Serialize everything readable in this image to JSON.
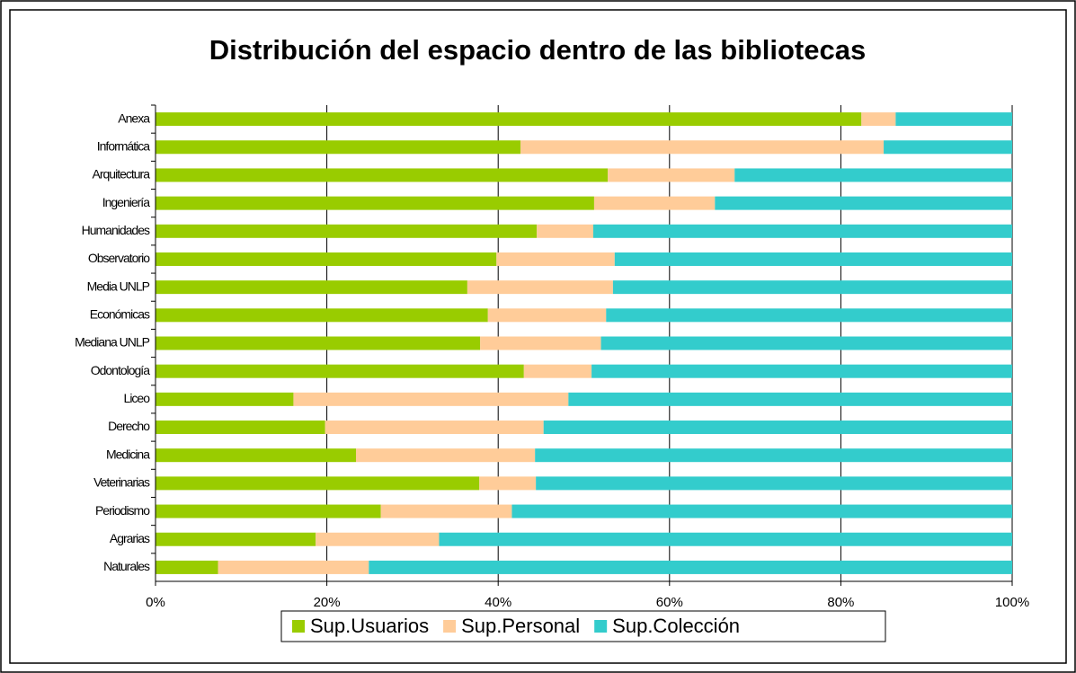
{
  "chart_data": {
    "type": "stacked-barh",
    "title": "Distribución del espacio dentro de las bibliotecas",
    "categories": [
      "Anexa",
      "Informática",
      "Arquitectura",
      "Ingeniería",
      "Humanidades",
      "Observatorio",
      "Media UNLP",
      "Económicas",
      "Mediana UNLP",
      "Odontología",
      "Liceo",
      "Derecho",
      "Medicina",
      "Veterinarias",
      "Periodismo",
      "Agrarias",
      "Naturales"
    ],
    "series": [
      {
        "name": "Sup.Usuarios",
        "color": "#99cc00",
        "values": [
          82.4,
          42.6,
          52.8,
          51.2,
          44.5,
          39.8,
          36.4,
          38.8,
          37.9,
          43.0,
          16.1,
          19.8,
          23.4,
          37.8,
          26.3,
          18.7,
          7.3
        ]
      },
      {
        "name": "Sup.Personal",
        "color": "#ffcc99",
        "values": [
          4.0,
          42.4,
          14.8,
          14.1,
          6.6,
          13.8,
          17.0,
          13.8,
          14.1,
          7.9,
          32.1,
          25.5,
          20.9,
          6.6,
          15.3,
          14.4,
          17.6
        ]
      },
      {
        "name": "Sup.Colección",
        "color": "#33cccc",
        "values": [
          13.6,
          15.0,
          32.4,
          34.7,
          48.9,
          46.4,
          46.6,
          47.4,
          48.0,
          49.1,
          51.8,
          54.7,
          55.7,
          55.6,
          58.4,
          66.9,
          75.1
        ]
      }
    ],
    "xlim": [
      0,
      100
    ],
    "xticks": [
      {
        "value": 0,
        "label": "0%"
      },
      {
        "value": 20,
        "label": "20%"
      },
      {
        "value": 40,
        "label": "40%"
      },
      {
        "value": 60,
        "label": "60%"
      },
      {
        "value": 80,
        "label": "80%"
      },
      {
        "value": 100,
        "label": "100%"
      }
    ],
    "grid": true,
    "legend": "bottom"
  }
}
